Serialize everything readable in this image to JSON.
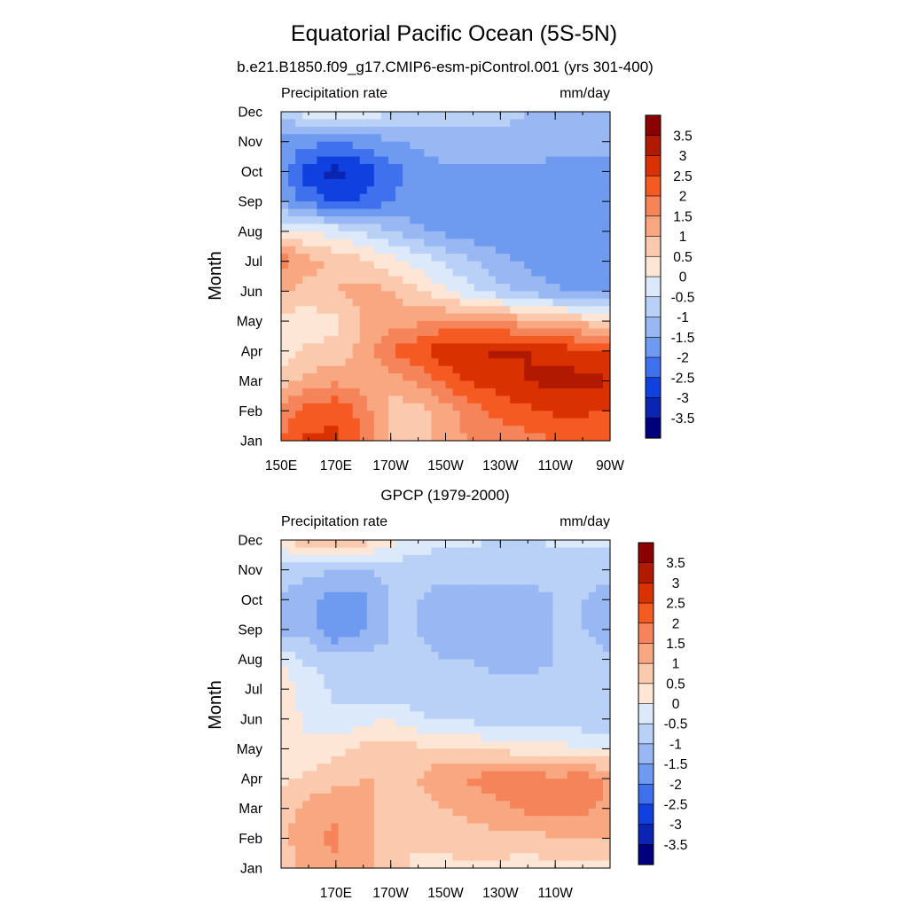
{
  "page": {
    "title": "Equatorial Pacific Ocean (5S-5N)"
  },
  "colorbar": {
    "levels": [
      "3.5",
      "3",
      "2.5",
      "2",
      "1.5",
      "1",
      "0.5",
      "0",
      "-0.5",
      "-1",
      "-1.5",
      "-2",
      "-2.5",
      "-3",
      "-3.5"
    ],
    "colors": [
      "#8b0000",
      "#b11a00",
      "#d93200",
      "#f55a22",
      "#f5845a",
      "#f8a781",
      "#fbc9ad",
      "#fde6d5",
      "#dce9fb",
      "#bad1f7",
      "#98b7f3",
      "#6e9af0",
      "#3f70ee",
      "#1140e0",
      "#0a25b3",
      "#00007f"
    ]
  },
  "chart_data": [
    {
      "type": "heatmap",
      "title": "b.e21.B1850.f09_g17.CMIP6-esm-piControl.001 (yrs 301-400)",
      "left_label": "Precipitation rate",
      "right_label": "mm/day",
      "ylabel": "Month",
      "xlabel": "",
      "x_ticks": [
        "150E",
        "170E",
        "170W",
        "150W",
        "130W",
        "110W",
        "90W"
      ],
      "y_ticks": [
        "Jan",
        "Feb",
        "Mar",
        "Apr",
        "May",
        "Jun",
        "Jul",
        "Aug",
        "Sep",
        "Oct",
        "Nov",
        "Dec"
      ],
      "xlim": [
        150,
        270
      ],
      "ylim": [
        1,
        12
      ],
      "x": [
        150,
        160,
        170,
        180,
        190,
        200,
        210,
        220,
        230,
        240,
        250,
        260,
        270
      ],
      "y": [
        "Jan",
        "Feb",
        "Mar",
        "Apr",
        "May",
        "Jun",
        "Jul",
        "Aug",
        "Sep",
        "Oct",
        "Nov",
        "Dec"
      ],
      "z": [
        [
          2.0,
          2.6,
          2.6,
          2.0,
          1.0,
          0.8,
          1.2,
          1.6,
          1.6,
          1.8,
          2.0,
          2.2,
          2.0
        ],
        [
          1.8,
          2.2,
          2.4,
          1.8,
          0.8,
          0.8,
          1.2,
          1.8,
          2.2,
          2.4,
          2.6,
          2.6,
          2.4
        ],
        [
          0.8,
          1.2,
          1.4,
          1.2,
          1.2,
          1.6,
          2.2,
          2.6,
          2.8,
          3.0,
          3.2,
          3.2,
          3.0
        ],
        [
          0.2,
          0.6,
          0.6,
          1.2,
          2.0,
          2.4,
          2.8,
          3.0,
          3.1,
          3.0,
          2.8,
          2.6,
          2.4
        ],
        [
          0.4,
          0.2,
          0.4,
          1.0,
          1.2,
          1.4,
          1.6,
          1.6,
          1.4,
          1.2,
          1.0,
          0.8,
          0.6
        ],
        [
          1.0,
          0.8,
          1.0,
          1.2,
          1.0,
          0.6,
          0.0,
          -0.4,
          -0.8,
          -1.2,
          -1.4,
          -1.6,
          -1.8
        ],
        [
          1.8,
          1.2,
          0.8,
          0.6,
          0.2,
          -0.2,
          -0.6,
          -1.0,
          -1.4,
          -1.6,
          -1.8,
          -1.8,
          -1.8
        ],
        [
          0.2,
          0.0,
          -0.2,
          -0.6,
          -1.0,
          -1.4,
          -1.6,
          -1.8,
          -1.8,
          -1.8,
          -1.8,
          -1.8,
          -1.8
        ],
        [
          -1.6,
          -2.2,
          -2.6,
          -2.4,
          -2.0,
          -1.8,
          -1.8,
          -1.8,
          -1.8,
          -1.8,
          -1.8,
          -1.8,
          -1.8
        ],
        [
          -1.8,
          -2.8,
          -3.2,
          -2.8,
          -2.2,
          -1.8,
          -1.6,
          -1.6,
          -1.6,
          -1.6,
          -1.6,
          -1.6,
          -1.6
        ],
        [
          -1.6,
          -1.8,
          -2.0,
          -1.8,
          -1.6,
          -1.4,
          -1.2,
          -1.2,
          -1.2,
          -1.2,
          -1.4,
          -1.4,
          -1.4
        ],
        [
          -1.0,
          0.0,
          0.2,
          -0.2,
          -0.4,
          -0.6,
          -0.8,
          -0.8,
          -0.8,
          -1.0,
          -1.0,
          -1.0,
          -1.0
        ]
      ]
    },
    {
      "type": "heatmap",
      "title": "GPCP (1979-2000)",
      "left_label": "Precipitation rate",
      "right_label": "mm/day",
      "ylabel": "Month",
      "xlabel": "",
      "x_ticks": [
        "170E",
        "170W",
        "150W",
        "130W",
        "110W"
      ],
      "y_ticks": [
        "Jan",
        "Feb",
        "Mar",
        "Apr",
        "May",
        "Jun",
        "Jul",
        "Aug",
        "Sep",
        "Oct",
        "Nov",
        "Dec"
      ],
      "xlim": [
        150,
        270
      ],
      "ylim": [
        1,
        12
      ],
      "x": [
        150,
        160,
        170,
        180,
        190,
        200,
        210,
        220,
        230,
        240,
        250,
        260,
        270
      ],
      "y": [
        "Jan",
        "Feb",
        "Mar",
        "Apr",
        "May",
        "Jun",
        "Jul",
        "Aug",
        "Sep",
        "Oct",
        "Nov",
        "Dec"
      ],
      "z": [
        [
          0.6,
          1.2,
          1.4,
          1.2,
          0.6,
          0.4,
          0.4,
          0.4,
          0.4,
          0.2,
          0.4,
          0.4,
          0.4
        ],
        [
          0.8,
          1.4,
          1.6,
          1.2,
          0.6,
          0.6,
          0.6,
          0.8,
          0.8,
          0.8,
          1.0,
          1.0,
          1.0
        ],
        [
          0.8,
          1.2,
          1.4,
          1.2,
          0.8,
          0.8,
          1.0,
          1.2,
          1.4,
          1.6,
          1.6,
          1.6,
          1.4
        ],
        [
          0.4,
          0.6,
          0.8,
          1.0,
          1.0,
          1.0,
          1.4,
          1.6,
          1.8,
          1.8,
          1.6,
          1.8,
          1.4
        ],
        [
          0.0,
          0.2,
          0.4,
          0.6,
          0.8,
          0.6,
          0.6,
          0.4,
          0.4,
          0.2,
          0.2,
          0.0,
          0.0
        ],
        [
          0.4,
          -0.2,
          -0.4,
          -0.2,
          0.0,
          -0.4,
          -0.6,
          -0.6,
          -0.8,
          -0.8,
          -0.8,
          -0.8,
          -0.8
        ],
        [
          0.2,
          -0.2,
          -0.6,
          -0.8,
          -0.8,
          -0.8,
          -0.8,
          -0.8,
          -0.8,
          -0.8,
          -0.8,
          -0.8,
          -0.8
        ],
        [
          0.0,
          -0.6,
          -0.8,
          -0.8,
          -0.8,
          -0.8,
          -1.0,
          -1.0,
          -1.2,
          -1.2,
          -1.0,
          -0.8,
          -1.0
        ],
        [
          -1.6,
          -1.2,
          -2.0,
          -1.6,
          -1.0,
          -1.0,
          -1.4,
          -1.4,
          -1.4,
          -1.4,
          -1.0,
          -1.0,
          -1.2
        ],
        [
          -1.0,
          -1.4,
          -1.8,
          -1.6,
          -1.0,
          -1.0,
          -1.2,
          -1.2,
          -1.2,
          -1.2,
          -1.0,
          -1.0,
          -1.2
        ],
        [
          -0.8,
          -0.8,
          -1.0,
          -1.0,
          -0.8,
          -0.8,
          -0.8,
          -0.8,
          -0.8,
          -0.8,
          -0.8,
          -0.8,
          -0.8
        ],
        [
          0.4,
          1.0,
          1.2,
          0.8,
          0.2,
          -0.2,
          -0.4,
          -0.4,
          -0.6,
          -0.6,
          -0.4,
          -0.4,
          -0.4
        ]
      ]
    }
  ]
}
